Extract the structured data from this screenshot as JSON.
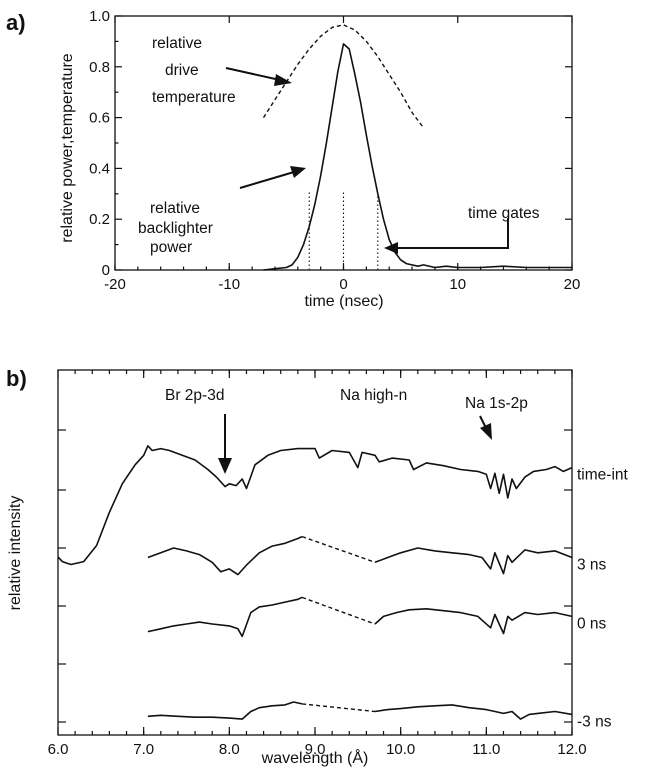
{
  "figure": {
    "panel_a_letter": "a)",
    "panel_b_letter": "b)"
  },
  "chart_data": [
    {
      "panel": "a)",
      "type": "line",
      "xlabel": "time (nsec)",
      "ylabel": "relative power,temperature",
      "xlim": [
        -20,
        20
      ],
      "ylim": [
        0,
        1.0
      ],
      "x_ticks": [
        -20,
        -10,
        0,
        10,
        20
      ],
      "y_ticks": [
        0,
        0.2,
        0.4,
        0.6,
        0.8,
        1.0
      ],
      "x_tick_labels": [
        "-20",
        "-10",
        "0",
        "10",
        "20"
      ],
      "y_tick_labels": [
        "0",
        "0.2",
        "0.4",
        "0.6",
        "0.8",
        "1.0"
      ],
      "grid": false,
      "series": [
        {
          "name": "relative backlighter power",
          "style": "solid",
          "x": [
            -7,
            -6,
            -5,
            -4.5,
            -4,
            -3.5,
            -3,
            -2.5,
            -2,
            -1.5,
            -1,
            -0.5,
            0,
            0.5,
            1,
            1.5,
            2,
            2.5,
            3,
            3.5,
            4,
            4.5,
            5,
            5.5,
            6,
            6.5,
            7,
            8,
            9,
            10,
            12,
            14,
            16,
            18,
            20
          ],
          "y": [
            0,
            0.005,
            0.01,
            0.02,
            0.05,
            0.1,
            0.17,
            0.26,
            0.37,
            0.5,
            0.64,
            0.78,
            0.89,
            0.87,
            0.77,
            0.66,
            0.53,
            0.41,
            0.3,
            0.2,
            0.12,
            0.07,
            0.04,
            0.025,
            0.02,
            0.015,
            0.02,
            0.01,
            0.015,
            0.01,
            0.01,
            0.015,
            0.01,
            0.01,
            0.01
          ]
        },
        {
          "name": "relative drive temperature",
          "style": "dashed",
          "x": [
            -7,
            -6,
            -5,
            -4,
            -3,
            -2,
            -1,
            0,
            1,
            2,
            3,
            4,
            5,
            6,
            7
          ],
          "y": [
            0.6,
            0.67,
            0.74,
            0.81,
            0.87,
            0.92,
            0.955,
            0.965,
            0.945,
            0.9,
            0.84,
            0.77,
            0.7,
            0.62,
            0.56
          ]
        }
      ],
      "time_gates_ns": [
        -3,
        0,
        3
      ],
      "annotations": {
        "drive_line1": "relative",
        "drive_line2": "drive",
        "drive_line3": "temperature",
        "back_line1": "relative",
        "back_line2": "backlighter",
        "back_line3": "power",
        "gates": "time gates"
      }
    },
    {
      "panel": "b)",
      "type": "line",
      "xlabel": "wavelength (Å)",
      "ylabel": "relative intensity",
      "xlim": [
        6.0,
        12.0
      ],
      "x_ticks": [
        6.0,
        7.0,
        8.0,
        9.0,
        10.0,
        11.0,
        12.0
      ],
      "x_tick_labels": [
        "6.0",
        "7.0",
        "8.0",
        "9.0",
        "10.0",
        "11.0",
        "12.0"
      ],
      "y_units": "arbitrary (offset traces)",
      "grid": false,
      "series": [
        {
          "name": "time-int",
          "x": [
            6.0,
            6.05,
            6.15,
            6.3,
            6.45,
            6.6,
            6.75,
            6.9,
            7.0,
            7.05,
            7.1,
            7.2,
            7.3,
            7.45,
            7.6,
            7.75,
            7.85,
            7.95,
            8.0,
            8.08,
            8.15,
            8.2,
            8.3,
            8.45,
            8.6,
            8.8,
            9.0,
            9.05,
            9.2,
            9.4,
            9.5,
            9.55,
            9.7,
            9.75,
            9.9,
            10.1,
            10.15,
            10.3,
            10.5,
            10.7,
            10.9,
            11.0,
            11.05,
            11.1,
            11.15,
            11.2,
            11.25,
            11.3,
            11.35,
            11.45,
            11.55,
            11.7,
            11.8,
            11.9,
            12.0
          ],
          "y": [
            0.38,
            0.33,
            0.3,
            0.33,
            0.5,
            0.85,
            1.15,
            1.35,
            1.45,
            1.55,
            1.5,
            1.52,
            1.5,
            1.45,
            1.4,
            1.3,
            1.22,
            1.12,
            1.15,
            1.13,
            1.2,
            1.1,
            1.35,
            1.45,
            1.5,
            1.52,
            1.52,
            1.42,
            1.5,
            1.48,
            1.32,
            1.48,
            1.45,
            1.38,
            1.42,
            1.4,
            1.3,
            1.37,
            1.34,
            1.3,
            1.28,
            1.25,
            1.1,
            1.26,
            1.05,
            1.25,
            1.0,
            1.2,
            1.1,
            1.22,
            1.28,
            1.3,
            1.33,
            1.28,
            1.32
          ]
        },
        {
          "name": "3 ns",
          "x": [
            7.05,
            7.2,
            7.35,
            7.5,
            7.65,
            7.8,
            7.9,
            8.0,
            8.1,
            8.2,
            8.35,
            8.5,
            8.65,
            8.8,
            8.85
          ],
          "y": [
            0.9,
            0.95,
            1.0,
            0.97,
            0.93,
            0.85,
            0.75,
            0.78,
            0.72,
            0.82,
            0.95,
            1.02,
            1.05,
            1.1,
            1.12
          ],
          "x2": [
            9.7,
            9.85,
            10.0,
            10.2,
            10.4,
            10.6,
            10.8,
            10.95,
            11.05,
            11.1,
            11.2,
            11.25,
            11.3,
            11.45,
            11.6,
            11.8,
            12.0
          ],
          "y2": [
            0.85,
            0.9,
            0.95,
            1.0,
            0.97,
            0.95,
            0.93,
            0.9,
            0.78,
            0.95,
            0.73,
            0.92,
            0.85,
            0.98,
            0.95,
            0.97,
            0.9
          ]
        },
        {
          "name": "0 ns",
          "x": [
            7.05,
            7.2,
            7.35,
            7.5,
            7.65,
            7.8,
            8.0,
            8.1,
            8.15,
            8.25,
            8.35,
            8.5,
            8.65,
            8.8,
            8.85
          ],
          "y": [
            0.52,
            0.55,
            0.58,
            0.6,
            0.62,
            0.6,
            0.58,
            0.55,
            0.47,
            0.72,
            0.78,
            0.8,
            0.83,
            0.86,
            0.88
          ],
          "x2": [
            9.7,
            9.8,
            9.95,
            10.1,
            10.3,
            10.5,
            10.7,
            10.9,
            11.05,
            11.1,
            11.2,
            11.25,
            11.3,
            11.45,
            11.6,
            11.8,
            12.0
          ],
          "y2": [
            0.6,
            0.68,
            0.72,
            0.75,
            0.76,
            0.74,
            0.72,
            0.68,
            0.56,
            0.7,
            0.5,
            0.68,
            0.64,
            0.72,
            0.7,
            0.72,
            0.68
          ]
        },
        {
          "name": "-3 ns",
          "x": [
            7.05,
            7.2,
            7.4,
            7.6,
            7.8,
            8.0,
            8.15,
            8.25,
            8.35,
            8.5,
            8.65,
            8.75,
            8.85
          ],
          "y": [
            0.25,
            0.26,
            0.25,
            0.24,
            0.24,
            0.23,
            0.22,
            0.3,
            0.34,
            0.36,
            0.37,
            0.4,
            0.38
          ],
          "x2": [
            9.7,
            9.85,
            10.0,
            10.2,
            10.4,
            10.6,
            10.8,
            11.0,
            11.2,
            11.3,
            11.4,
            11.5,
            11.6,
            11.8,
            12.0
          ],
          "y2": [
            0.3,
            0.32,
            0.33,
            0.35,
            0.36,
            0.37,
            0.34,
            0.32,
            0.28,
            0.3,
            0.22,
            0.27,
            0.28,
            0.3,
            0.27
          ]
        }
      ],
      "annotations": {
        "br": "Br 2p-3d",
        "na_high": "Na high-n",
        "na_1s2p": "Na 1s-2p"
      }
    }
  ]
}
